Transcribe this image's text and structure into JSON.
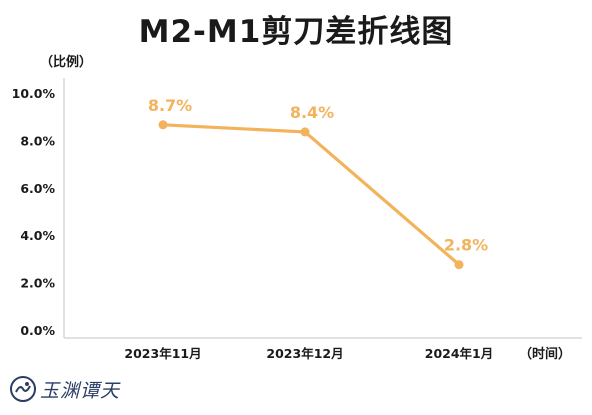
{
  "chart_data": {
    "type": "line",
    "title": "M2-M1剪刀差折线图",
    "ylabel": "（比例）",
    "xlabel": "（时间）",
    "categories": [
      "2023年11月",
      "2023年12月",
      "2024年1月"
    ],
    "values": [
      8.7,
      8.4,
      2.8
    ],
    "data_labels": [
      "8.7%",
      "8.4%",
      "2.8%"
    ],
    "y_ticks": [
      "0.0%",
      "2.0%",
      "4.0%",
      "6.0%",
      "8.0%",
      "10.0%"
    ],
    "ylim": [
      0,
      10
    ],
    "grid": false,
    "line_color": "#F3B35C",
    "label_color": "#F3B35C"
  },
  "logo": {
    "text": "玉渊谭天"
  }
}
